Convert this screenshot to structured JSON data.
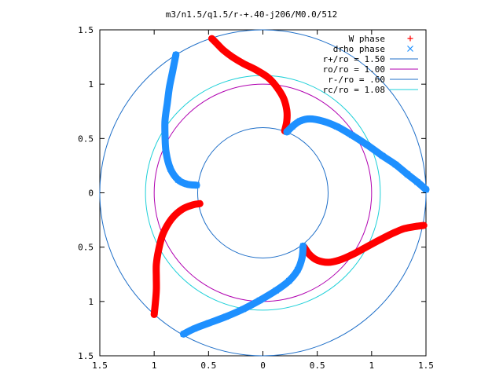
{
  "chart_data": {
    "type": "scatter",
    "title": "m3/n1.5/q1.5/r-+.40-j206/M0.0/512",
    "xlim": [
      -1.5,
      1.5
    ],
    "ylim": [
      -1.5,
      1.5
    ],
    "x_ticks": [
      -1.5,
      -1,
      -0.5,
      0,
      0.5,
      1,
      1.5
    ],
    "y_ticks": [
      -1.5,
      -1,
      -0.5,
      0,
      0.5,
      1,
      1.5
    ],
    "x_tick_labels": [
      "1.5",
      "1",
      "0.5",
      "0",
      "0.5",
      "1",
      "1.5"
    ],
    "y_tick_labels": [
      "1.5",
      "1",
      "0.5",
      "0",
      "0.5",
      "1",
      "1.5"
    ],
    "grid": false,
    "legend_position": "top-right",
    "series": [
      {
        "name": "W phase",
        "kind": "points",
        "marker": "+",
        "color": "#ff0000",
        "segments": [
          [
            [
              -0.47,
              1.42
            ],
            [
              -0.42,
              1.37
            ],
            [
              -0.36,
              1.31
            ],
            [
              -0.28,
              1.25
            ],
            [
              -0.18,
              1.19
            ],
            [
              -0.06,
              1.13
            ],
            [
              0.05,
              1.06
            ],
            [
              0.13,
              0.97
            ],
            [
              0.19,
              0.87
            ],
            [
              0.22,
              0.76
            ],
            [
              0.22,
              0.66
            ],
            [
              0.2,
              0.57
            ]
          ],
          [
            [
              1.48,
              -0.3
            ],
            [
              1.4,
              -0.31
            ],
            [
              1.3,
              -0.33
            ],
            [
              1.2,
              -0.37
            ],
            [
              1.08,
              -0.43
            ],
            [
              0.95,
              -0.5
            ],
            [
              0.82,
              -0.57
            ],
            [
              0.7,
              -0.62
            ],
            [
              0.6,
              -0.64
            ],
            [
              0.5,
              -0.62
            ],
            [
              0.43,
              -0.57
            ],
            [
              0.38,
              -0.5
            ]
          ],
          [
            [
              -1.0,
              -1.12
            ],
            [
              -0.99,
              -1.02
            ],
            [
              -0.98,
              -0.9
            ],
            [
              -0.98,
              -0.78
            ],
            [
              -0.98,
              -0.66
            ],
            [
              -0.96,
              -0.53
            ],
            [
              -0.92,
              -0.38
            ],
            [
              -0.84,
              -0.24
            ],
            [
              -0.74,
              -0.15
            ],
            [
              -0.64,
              -0.11
            ],
            [
              -0.58,
              -0.1
            ]
          ]
        ]
      },
      {
        "name": "drho phase",
        "kind": "points",
        "marker": "x",
        "color": "#1e90ff",
        "segments": [
          [
            [
              0.22,
              0.56
            ],
            [
              0.27,
              0.61
            ],
            [
              0.34,
              0.66
            ],
            [
              0.43,
              0.68
            ],
            [
              0.55,
              0.66
            ],
            [
              0.68,
              0.61
            ],
            [
              0.82,
              0.53
            ],
            [
              0.96,
              0.44
            ],
            [
              1.1,
              0.34
            ],
            [
              1.22,
              0.26
            ],
            [
              1.33,
              0.17
            ],
            [
              1.42,
              0.1
            ],
            [
              1.5,
              0.03
            ]
          ],
          [
            [
              -0.8,
              1.27
            ],
            [
              -0.83,
              1.12
            ],
            [
              -0.86,
              0.97
            ],
            [
              -0.88,
              0.82
            ],
            [
              -0.9,
              0.67
            ],
            [
              -0.9,
              0.52
            ],
            [
              -0.89,
              0.37
            ],
            [
              -0.85,
              0.22
            ],
            [
              -0.78,
              0.12
            ],
            [
              -0.7,
              0.08
            ],
            [
              -0.61,
              0.07
            ]
          ],
          [
            [
              0.37,
              -0.49
            ],
            [
              0.36,
              -0.6
            ],
            [
              0.32,
              -0.71
            ],
            [
              0.24,
              -0.81
            ],
            [
              0.12,
              -0.9
            ],
            [
              -0.03,
              -0.99
            ],
            [
              -0.18,
              -1.07
            ],
            [
              -0.34,
              -1.14
            ],
            [
              -0.5,
              -1.2
            ],
            [
              -0.63,
              -1.25
            ],
            [
              -0.73,
              -1.3
            ]
          ]
        ]
      },
      {
        "name": "r+/ro = 1.50",
        "kind": "circle",
        "radius": 1.5,
        "color": "#1f6fc8"
      },
      {
        "name": "ro/ro = 1.00",
        "kind": "circle",
        "radius": 1.0,
        "color": "#b000b0"
      },
      {
        "name": "r-/ro = .60",
        "kind": "circle",
        "radius": 0.6,
        "color": "#1f6fc8"
      },
      {
        "name": "rc/ro = 1.08",
        "kind": "circle",
        "radius": 1.08,
        "color": "#1ed0d8"
      }
    ]
  }
}
